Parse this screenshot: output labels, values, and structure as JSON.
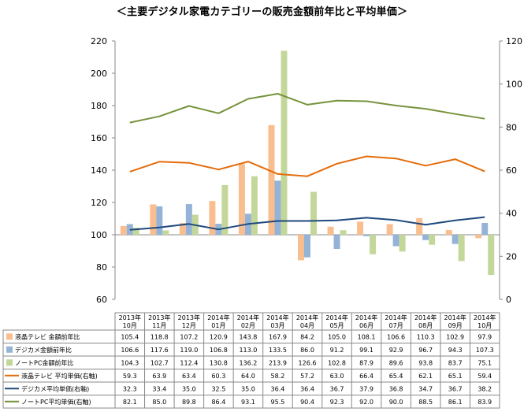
{
  "chart_data": {
    "type": "bar",
    "title": "＜主要デジタル家電カテゴリーの販売金額前年比と平均単価＞",
    "categories": [
      "2013年\n10月",
      "2013年\n11月",
      "2013年\n12月",
      "2014年\n01月",
      "2014年\n02月",
      "2014年\n03月",
      "2014年\n04月",
      "2014年\n05月",
      "2014年\n06月",
      "2014年\n07月",
      "2014年\n08月",
      "2014年\n09月",
      "2014年\n10月"
    ],
    "ylim_left": [
      60,
      220
    ],
    "ylim_right": [
      0,
      120
    ],
    "left_ticks": [
      60,
      80,
      100,
      120,
      140,
      160,
      180,
      200,
      220
    ],
    "right_ticks": [
      0,
      20,
      40,
      60,
      80,
      100,
      120
    ],
    "grid": false,
    "legend": "data-table",
    "series": [
      {
        "name": "液晶テレビ 金額前年比",
        "type": "bar",
        "axis": "left",
        "color": "#f9be8f",
        "values": [
          105.4,
          118.8,
          107.2,
          120.9,
          143.8,
          167.9,
          84.2,
          105.0,
          108.1,
          106.6,
          110.3,
          102.9,
          97.9
        ]
      },
      {
        "name": "デジカメ金額前年比",
        "type": "bar",
        "axis": "left",
        "color": "#95b3d7",
        "values": [
          106.6,
          117.6,
          119.0,
          106.8,
          113.0,
          133.5,
          86.0,
          91.2,
          99.1,
          92.9,
          96.7,
          94.3,
          107.3
        ]
      },
      {
        "name": "ノートPC金額前年比",
        "type": "bar",
        "axis": "left",
        "color": "#c4d79b",
        "values": [
          104.3,
          102.7,
          112.4,
          130.8,
          136.2,
          213.9,
          126.6,
          102.8,
          87.9,
          89.6,
          93.8,
          83.7,
          75.1
        ]
      },
      {
        "name": "液晶テレビ 平均単価(右軸)",
        "type": "line",
        "axis": "right",
        "color": "#e46c0a",
        "values": [
          59.3,
          63.9,
          63.4,
          60.3,
          64.0,
          58.2,
          57.2,
          63.0,
          66.4,
          65.4,
          62.1,
          65.1,
          59.4
        ]
      },
      {
        "name": "デジカメ平均単価(右軸)",
        "type": "line",
        "axis": "right",
        "color": "#1f497d",
        "values": [
          32.3,
          33.4,
          35.0,
          32.5,
          35.0,
          36.4,
          36.4,
          36.7,
          37.9,
          36.8,
          34.7,
          36.7,
          38.2
        ]
      },
      {
        "name": "ノートPC平均単価(右軸)",
        "type": "line",
        "axis": "right",
        "color": "#77933c",
        "values": [
          82.1,
          85.0,
          89.8,
          86.4,
          93.1,
          95.5,
          90.4,
          92.3,
          92.0,
          90.0,
          88.5,
          86.1,
          83.9
        ]
      }
    ]
  }
}
